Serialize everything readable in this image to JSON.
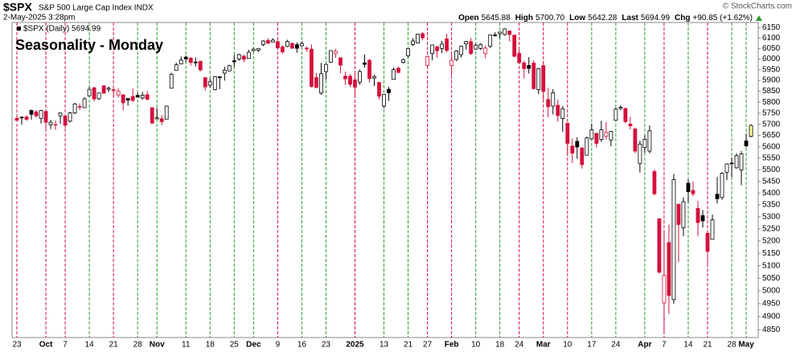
{
  "chart_data": {
    "type": "candlestick",
    "symbol": "$SPX",
    "name": "S&P 500 Large Cap Index INDX",
    "timestamp": "2-May-2025 3:28pm",
    "credit": "© StockCharts.com",
    "quote": [
      {
        "label": "Open",
        "value": "5645.88"
      },
      {
        "label": "High",
        "value": "5700.70"
      },
      {
        "label": "Low",
        "value": "5642.28"
      },
      {
        "label": "Last",
        "value": "5694.99"
      },
      {
        "label": "Chg",
        "value": "+90.85 (+1.62%)"
      }
    ],
    "legend": "$SPX (Daily) 5694.99",
    "annotation": "Seasonality - Monday",
    "log_scale": true,
    "grid": false,
    "up_color": "#000000",
    "down_color": "#d4113c",
    "last_fill": "#ffff99",
    "week_line_up_color": "#2e9e2e",
    "week_line_down_color": "#d4113c",
    "annotation_color": "#1a1adf",
    "ylim": [
      4820,
      6175
    ],
    "yticks": [
      4850,
      4900,
      4950,
      5000,
      5050,
      5100,
      5150,
      5200,
      5250,
      5300,
      5350,
      5400,
      5450,
      5500,
      5550,
      5600,
      5650,
      5700,
      5750,
      5800,
      5850,
      5900,
      5950,
      6000,
      6050,
      6100,
      6150
    ],
    "categories": [
      "23",
      null,
      null,
      null,
      null,
      null,
      "Oct",
      null,
      null,
      null,
      "7",
      null,
      null,
      null,
      null,
      "14",
      null,
      null,
      null,
      null,
      "21",
      null,
      null,
      null,
      null,
      "28",
      null,
      null,
      null,
      "Nov",
      null,
      null,
      null,
      null,
      null,
      "11",
      null,
      null,
      null,
      null,
      "18",
      null,
      null,
      null,
      null,
      "25",
      null,
      null,
      null,
      "Dec",
      null,
      null,
      null,
      null,
      "9",
      null,
      null,
      null,
      null,
      "16",
      null,
      null,
      null,
      null,
      "23",
      null,
      null,
      null,
      null,
      null,
      "2025",
      null,
      null,
      null,
      null,
      null,
      "13",
      null,
      null,
      null,
      null,
      "21",
      null,
      null,
      null,
      "27",
      null,
      null,
      null,
      null,
      "Feb",
      null,
      null,
      null,
      null,
      "10",
      null,
      null,
      null,
      null,
      "18",
      null,
      null,
      null,
      "24",
      null,
      null,
      null,
      null,
      "Mar",
      null,
      null,
      null,
      null,
      "10",
      null,
      null,
      null,
      null,
      "17",
      null,
      null,
      null,
      null,
      "24",
      null,
      null,
      null,
      null,
      null,
      "Apr",
      null,
      null,
      null,
      "7",
      null,
      null,
      null,
      null,
      "14",
      null,
      null,
      null,
      "21",
      null,
      null,
      null,
      null,
      "28",
      null,
      null,
      "May",
      null
    ],
    "open": [
      5727,
      5730,
      5733,
      5762,
      5756,
      5727,
      5758,
      5698,
      5698,
      5738,
      5737,
      5714,
      5751,
      5779,
      5775,
      5829,
      5866,
      5816,
      5875,
      5859,
      5857,
      5833,
      5834,
      5817,
      5826,
      5831,
      5819,
      5834,
      5775,
      5724,
      5725,
      5723,
      5864,
      5947,
      5977,
      6009,
      6004,
      5986,
      5989,
      5913,
      5878,
      5857,
      5917,
      5934,
      5944,
      5992,
      6000,
      6014,
      6003,
      6040,
      6042,
      6069,
      6089,
      6081,
      6083,
      6058,
      6060,
      6074,
      6068,
      6063,
      6052,
      6047,
      5913,
      5842,
      5941,
      5985,
      6025,
      6006,
      5920,
      5920,
      5903,
      5892,
      5982,
      5994,
      5911,
      5891,
      5782,
      5859,
      5905,
      5957,
      5984,
      6015,
      6069,
      6076,
      6121,
      5969,
      6026,
      6058,
      6050,
      6096,
      5969,
      5998,
      6021,
      6072,
      6083,
      6047,
      6050,
      6025,
      6061,
      6115,
      6121,
      6117,
      6134,
      6114,
      6027,
      5982,
      5970,
      5981,
      5857,
      5969,
      5812,
      5782,
      5786,
      5726,
      5705,
      5603,
      5624,
      5595,
      5563,
      5635,
      5660,
      5632,
      5646,
      5630,
      5718,
      5772,
      5771,
      5701,
      5679,
      5527,
      5597,
      5581,
      5492,
      5292,
      4953,
      5194,
      4966,
      5353,
      5255,
      5442,
      5411,
      5335,
      5305,
      5232,
      5207,
      5395,
      5381,
      5489,
      5529,
      5508,
      5499,
      5626,
      5645.88
    ],
    "high": [
      5736,
      5735,
      5741,
      5767,
      5764,
      5765,
      5758,
      5720,
      5718,
      5753,
      5740,
      5757,
      5797,
      5795,
      5823,
      5871,
      5870,
      5843,
      5878,
      5871,
      5866,
      5864,
      5834,
      5817,
      5862,
      5842,
      5847,
      5851,
      5775,
      5773,
      5742,
      5783,
      5936,
      5983,
      6012,
      6017,
      6009,
      6008,
      5993,
      5915,
      5909,
      5918,
      5920,
      5964,
      5973,
      6020,
      6025,
      6020,
      6044,
      6053,
      6052,
      6089,
      6099,
      6099,
      6088,
      6066,
      6092,
      6079,
      6079,
      6085,
      6058,
      6070,
      5935,
      5982,
      5978,
      6040,
      6049,
      6006,
      5941,
      5929,
      5935,
      5950,
      6021,
      6001,
      5927,
      5892,
      5837,
      5870,
      5961,
      5965,
      6003,
      6051,
      6100,
      6119,
      6129,
      6017,
      6069,
      6063,
      6087,
      6120,
      6022,
      6042,
      6063,
      6084,
      6101,
      6073,
      6076,
      6064,
      6116,
      6128,
      6129,
      6147,
      6134,
      6115,
      6043,
      5992,
      6009,
      5994,
      5959,
      5987,
      5866,
      5860,
      5812,
      5783,
      5705,
      5636,
      5642,
      5597,
      5645,
      5703,
      5661,
      5716,
      5711,
      5670,
      5775,
      5786,
      5777,
      5733,
      5686,
      5627,
      5651,
      5695,
      5501,
      5292,
      5246,
      5268,
      5482,
      5353,
      5381,
      5459,
      5450,
      5367,
      5328,
      5233,
      5309,
      5469,
      5489,
      5528,
      5553,
      5571,
      5581,
      5658,
      5700.7
    ],
    "low": [
      5713,
      5698,
      5715,
      5721,
      5729,
      5704,
      5675,
      5678,
      5675,
      5702,
      5683,
      5708,
      5746,
      5764,
      5773,
      5828,
      5804,
      5809,
      5840,
      5846,
      5824,
      5821,
      5762,
      5784,
      5800,
      5823,
      5812,
      5810,
      5703,
      5724,
      5696,
      5722,
      5864,
      5946,
      5977,
      5987,
      5969,
      5965,
      5942,
      5853,
      5866,
      5854,
      5860,
      5899,
      5944,
      5964,
      5992,
      5985,
      6003,
      6036,
      6033,
      6061,
      6072,
      6079,
      6048,
      6024,
      6056,
      6051,
      6030,
      6060,
      6035,
      5867,
      5866,
      5833,
      5903,
      5983,
      6007,
      5933,
      5879,
      5869,
      5830,
      5880,
      5960,
      5890,
      5874,
      5812,
      5773,
      5806,
      5905,
      5934,
      5979,
      6007,
      6062,
      6074,
      6089,
      5962,
      5994,
      6007,
      6028,
      6031,
      5923,
      5990,
      6007,
      6045,
      6019,
      6044,
      6043,
      6004,
      6052,
      6107,
      6099,
      6111,
      6084,
      6008,
      5978,
      5909,
      5932,
      5858,
      5837,
      5810,
      5732,
      5744,
      5711,
      5667,
      5565,
      5529,
      5547,
      5505,
      5563,
      5631,
      5597,
      5622,
      5632,
      5603,
      5718,
      5764,
      5704,
      5677,
      5572,
      5488,
      5573,
      5571,
      5390,
      5069,
      4835,
      4910,
      4950,
      5115,
      5220,
      5358,
      5387,
      5220,
      5255,
      5102,
      5207,
      5356,
      5371,
      5456,
      5468,
      5505,
      5433,
      5597,
      5642.28
    ],
    "close": [
      5718,
      5732,
      5722,
      5745,
      5738,
      5762,
      5709,
      5709,
      5699,
      5751,
      5696,
      5751,
      5792,
      5780,
      5815,
      5859,
      5815,
      5842,
      5841,
      5864,
      5853,
      5851,
      5797,
      5809,
      5808,
      5823,
      5832,
      5813,
      5705,
      5729,
      5712,
      5782,
      5929,
      5973,
      5995,
      6001,
      5984,
      5985,
      5949,
      5870,
      5894,
      5917,
      5917,
      5948,
      5969,
      5987,
      6021,
      5999,
      6032,
      6047,
      6050,
      6086,
      6075,
      6090,
      6053,
      6034,
      6084,
      6051,
      6051,
      6074,
      6050,
      5872,
      5867,
      5931,
      5975,
      6040,
      6037,
      5971,
      5907,
      5882,
      5869,
      5942,
      5975,
      5909,
      5918,
      5827,
      5836,
      5843,
      5950,
      5937,
      5997,
      6049,
      6086,
      6119,
      6101,
      6012,
      6067,
      6039,
      6071,
      6041,
      5994,
      6038,
      6061,
      6084,
      6026,
      6066,
      6069,
      6052,
      6115,
      6115,
      6129,
      6144,
      6117,
      6013,
      5983,
      5955,
      5956,
      5862,
      5955,
      5850,
      5779,
      5843,
      5739,
      5770,
      5615,
      5572,
      5599,
      5522,
      5639,
      5675,
      5615,
      5675,
      5663,
      5668,
      5768,
      5777,
      5712,
      5693,
      5581,
      5612,
      5633,
      5671,
      5397,
      5074,
      5062,
      4982,
      5457,
      5268,
      5363,
      5406,
      5397,
      5276,
      5283,
      5158,
      5287,
      5376,
      5485,
      5525,
      5529,
      5561,
      5569,
      5604,
      5694.99
    ]
  }
}
